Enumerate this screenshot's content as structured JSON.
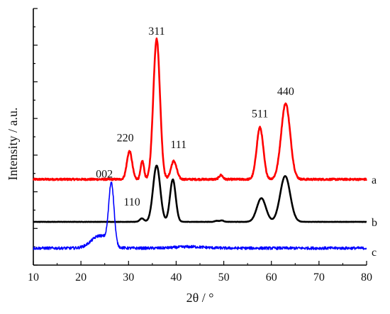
{
  "chart_data": {
    "type": "line",
    "title": "",
    "xlabel": "2θ / °",
    "ylabel": "Intensity / a.u.",
    "xlim": [
      10,
      80
    ],
    "xticks": [
      10,
      20,
      30,
      40,
      50,
      60,
      70,
      80
    ],
    "y_ticks_shown": false,
    "grid": false,
    "series": [
      {
        "name": "a",
        "color": "#ff0000",
        "baseline": 0.0,
        "noise": 0.006,
        "peaks": [
          {
            "x": 30.2,
            "h": 0.2,
            "w": 0.55
          },
          {
            "x": 32.9,
            "h": 0.13,
            "w": 0.35
          },
          {
            "x": 35.9,
            "h": 1.0,
            "w": 0.7
          },
          {
            "x": 39.5,
            "h": 0.13,
            "w": 0.6
          },
          {
            "x": 49.4,
            "h": 0.03,
            "w": 0.4
          },
          {
            "x": 57.6,
            "h": 0.37,
            "w": 0.7
          },
          {
            "x": 63.0,
            "h": 0.54,
            "w": 0.95
          }
        ]
      },
      {
        "name": "b",
        "color": "#000000",
        "baseline": 0.0,
        "noise": 0.002,
        "peaks": [
          {
            "x": 32.8,
            "h": 0.05,
            "w": 0.45
          },
          {
            "x": 35.9,
            "h": 0.81,
            "w": 0.75
          },
          {
            "x": 39.3,
            "h": 0.61,
            "w": 0.6
          },
          {
            "x": 48.5,
            "h": 0.015,
            "w": 0.4
          },
          {
            "x": 49.6,
            "h": 0.02,
            "w": 0.4
          },
          {
            "x": 57.9,
            "h": 0.34,
            "w": 0.95
          },
          {
            "x": 62.9,
            "h": 0.66,
            "w": 1.05
          }
        ]
      },
      {
        "name": "c",
        "color": "#0000ff",
        "baseline": 0.05,
        "noise": 0.02,
        "peaks": [
          {
            "x": 26.4,
            "h": 0.88,
            "w": 0.55
          },
          {
            "x": 24.0,
            "h": 0.18,
            "w": 1.8
          },
          {
            "x": 43.0,
            "h": 0.02,
            "w": 3.0
          }
        ]
      }
    ],
    "peak_labels": [
      {
        "text": "311",
        "x": 35.9,
        "series": "a"
      },
      {
        "text": "220",
        "x": 30.2,
        "series": "a"
      },
      {
        "text": "511",
        "x": 57.6,
        "series": "a"
      },
      {
        "text": "440",
        "x": 63.0,
        "series": "a"
      },
      {
        "text": "002",
        "x": 26.4,
        "series": "c"
      },
      {
        "text": "110",
        "x": 32.8,
        "series": "b"
      },
      {
        "text": "111",
        "x": 39.3,
        "series": "b"
      }
    ]
  }
}
